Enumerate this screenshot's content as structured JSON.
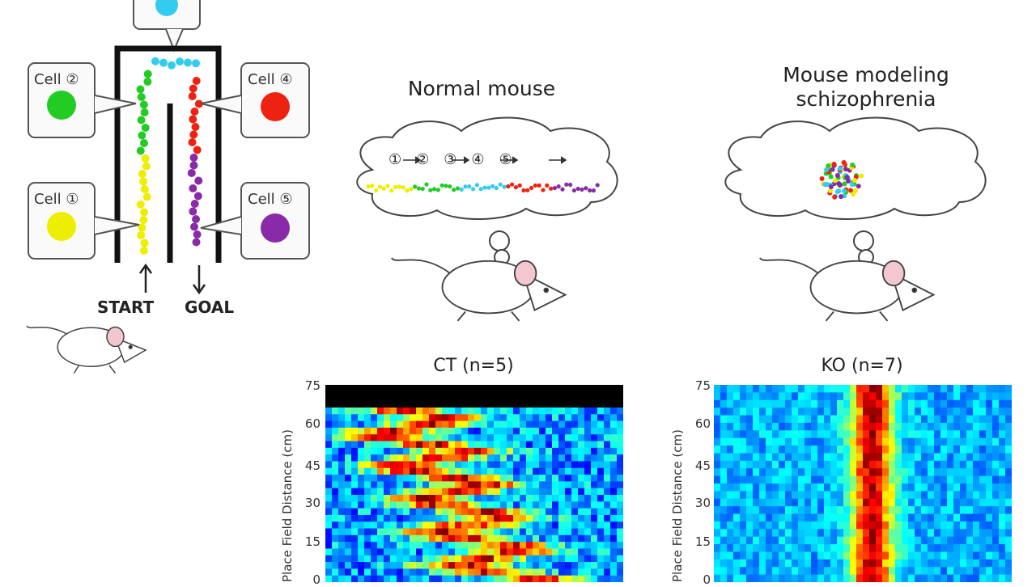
{
  "maze": {
    "cells": [
      {
        "label": "Cell",
        "num": "②",
        "color": "#22cc22"
      },
      {
        "label": "Cell",
        "num": "④",
        "color": "#ee2211"
      },
      {
        "label": "Cell",
        "num": "①",
        "color": "#eeee00"
      },
      {
        "label": "Cell",
        "num": "⑤",
        "color": "#8a2aa8"
      }
    ],
    "top_cell_color": "#33ccee",
    "start_label": "START",
    "goal_label": "GOAL"
  },
  "normal": {
    "title": "Normal mouse",
    "sequence": [
      "①",
      "②",
      "③",
      "④",
      "⑤"
    ]
  },
  "schizo": {
    "title_line1": "Mouse modeling",
    "title_line2": "schizophrenia"
  },
  "heatmaps": [
    {
      "title": "CT (n=5)",
      "ylabel": "Place Field Distance (cm)",
      "ticks": [
        "75",
        "60",
        "45",
        "30",
        "15",
        "0"
      ]
    },
    {
      "title": "KO (n=7)",
      "ylabel": "Place Field Distance (cm)",
      "ticks": [
        "75",
        "60",
        "45",
        "30",
        "15",
        "0"
      ]
    }
  ]
}
